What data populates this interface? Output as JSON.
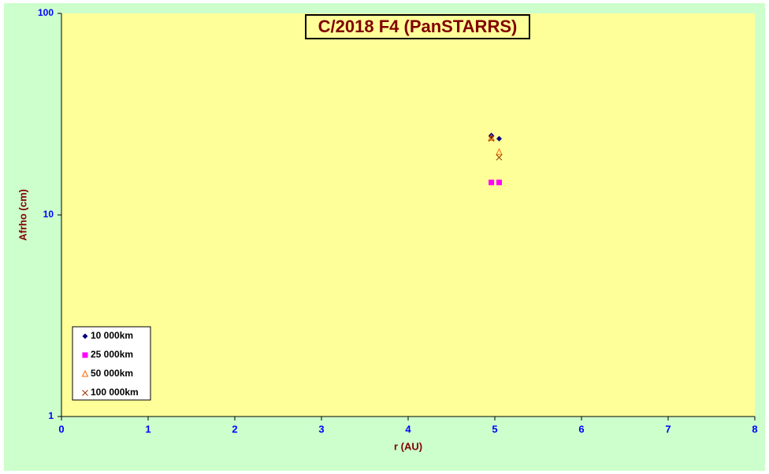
{
  "chart_data": {
    "type": "scatter",
    "title": "C/2018 F4 (PanSTARRS)",
    "x_label": "r (AU)",
    "y_label": "Afrho (cm)",
    "xlim": [
      0,
      8
    ],
    "xticks": [
      0,
      1,
      2,
      3,
      4,
      5,
      6,
      7,
      8
    ],
    "ylim": [
      1,
      100
    ],
    "yticks": [
      1,
      10,
      100
    ],
    "yscale": "log",
    "legend": "bottom-left",
    "series": [
      {
        "name": "10 000km",
        "color": "#000080",
        "marker": "diamond",
        "x": [
          4.96,
          5.05
        ],
        "values": [
          24.8,
          23.9
        ]
      },
      {
        "name": "25 000km",
        "color": "#ff00ff",
        "marker": "square",
        "x": [
          4.96,
          5.05
        ],
        "values": [
          14.5,
          14.5
        ]
      },
      {
        "name": "50 000km",
        "color": "#ff6600",
        "marker": "triangle",
        "x": [
          4.96,
          5.05
        ],
        "values": [
          24.1,
          20.5
        ]
      },
      {
        "name": "100 000km",
        "color": "#993300",
        "marker": "cross",
        "x": [
          4.96,
          5.05
        ],
        "values": [
          23.9,
          19.3
        ]
      }
    ]
  }
}
